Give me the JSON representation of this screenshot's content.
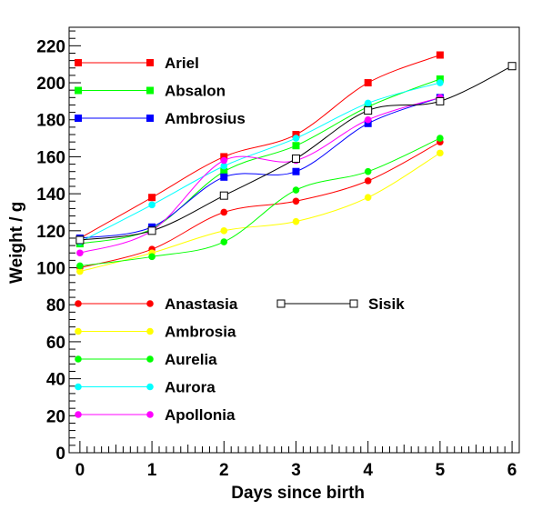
{
  "chart_data": {
    "type": "line",
    "xlabel": "Days since birth",
    "ylabel": "Weight / g",
    "xlim": [
      -0.15,
      6.1
    ],
    "ylim": [
      0,
      230
    ],
    "xticks": [
      0,
      1,
      2,
      3,
      4,
      5,
      6
    ],
    "yticks": [
      0,
      20,
      40,
      60,
      80,
      100,
      120,
      140,
      160,
      180,
      200,
      220
    ],
    "grid": false,
    "legend_groups": [
      {
        "placement": "top-left",
        "series": [
          "Ariel",
          "Absalon",
          "Ambrosius"
        ]
      },
      {
        "placement": "middle-left",
        "series": [
          "Anastasia",
          "Ambrosia",
          "Aurelia",
          "Aurora",
          "Apollonia"
        ]
      },
      {
        "placement": "middle-center",
        "series": [
          "Sisik"
        ]
      }
    ],
    "series": [
      {
        "name": "Ariel",
        "color": "#ff0000",
        "marker": "square",
        "x": [
          0,
          1,
          2,
          3,
          4,
          5
        ],
        "values": [
          116,
          138,
          160,
          172,
          200,
          215
        ]
      },
      {
        "name": "Absalon",
        "color": "#00ff00",
        "marker": "square",
        "x": [
          0,
          1,
          2,
          3,
          4,
          5
        ],
        "values": [
          113,
          121,
          152,
          166,
          187,
          202
        ]
      },
      {
        "name": "Ambrosius",
        "color": "#0000ff",
        "marker": "square",
        "x": [
          0,
          1,
          2,
          3,
          4,
          5
        ],
        "values": [
          116,
          122,
          149,
          152,
          178,
          192
        ]
      },
      {
        "name": "Anastasia",
        "color": "#ff0000",
        "marker": "circle",
        "x": [
          0,
          1,
          2,
          3,
          4,
          5
        ],
        "values": [
          100,
          110,
          130,
          136,
          147,
          168
        ]
      },
      {
        "name": "Ambrosia",
        "color": "#ffff00",
        "marker": "circle",
        "x": [
          0,
          1,
          2,
          3,
          4,
          5
        ],
        "values": [
          98,
          108,
          120,
          125,
          138,
          162
        ]
      },
      {
        "name": "Aurelia",
        "color": "#00ff00",
        "marker": "circle",
        "x": [
          0,
          1,
          2,
          3,
          4,
          5
        ],
        "values": [
          101,
          106,
          114,
          142,
          152,
          170
        ]
      },
      {
        "name": "Aurora",
        "color": "#00ffff",
        "marker": "circle",
        "x": [
          0,
          1,
          2,
          3,
          4,
          5
        ],
        "values": [
          114,
          134,
          155,
          170,
          189,
          200
        ]
      },
      {
        "name": "Apollonia",
        "color": "#ff00ff",
        "marker": "circle",
        "x": [
          0,
          1,
          2,
          3,
          4,
          5
        ],
        "values": [
          108,
          120,
          158,
          158,
          180,
          192
        ]
      },
      {
        "name": "Sisik",
        "color": "#000000",
        "marker": "open-square",
        "x": [
          0,
          1,
          2,
          3,
          4,
          5,
          6
        ],
        "values": [
          115,
          120,
          139,
          159,
          185,
          190,
          209
        ]
      }
    ]
  }
}
